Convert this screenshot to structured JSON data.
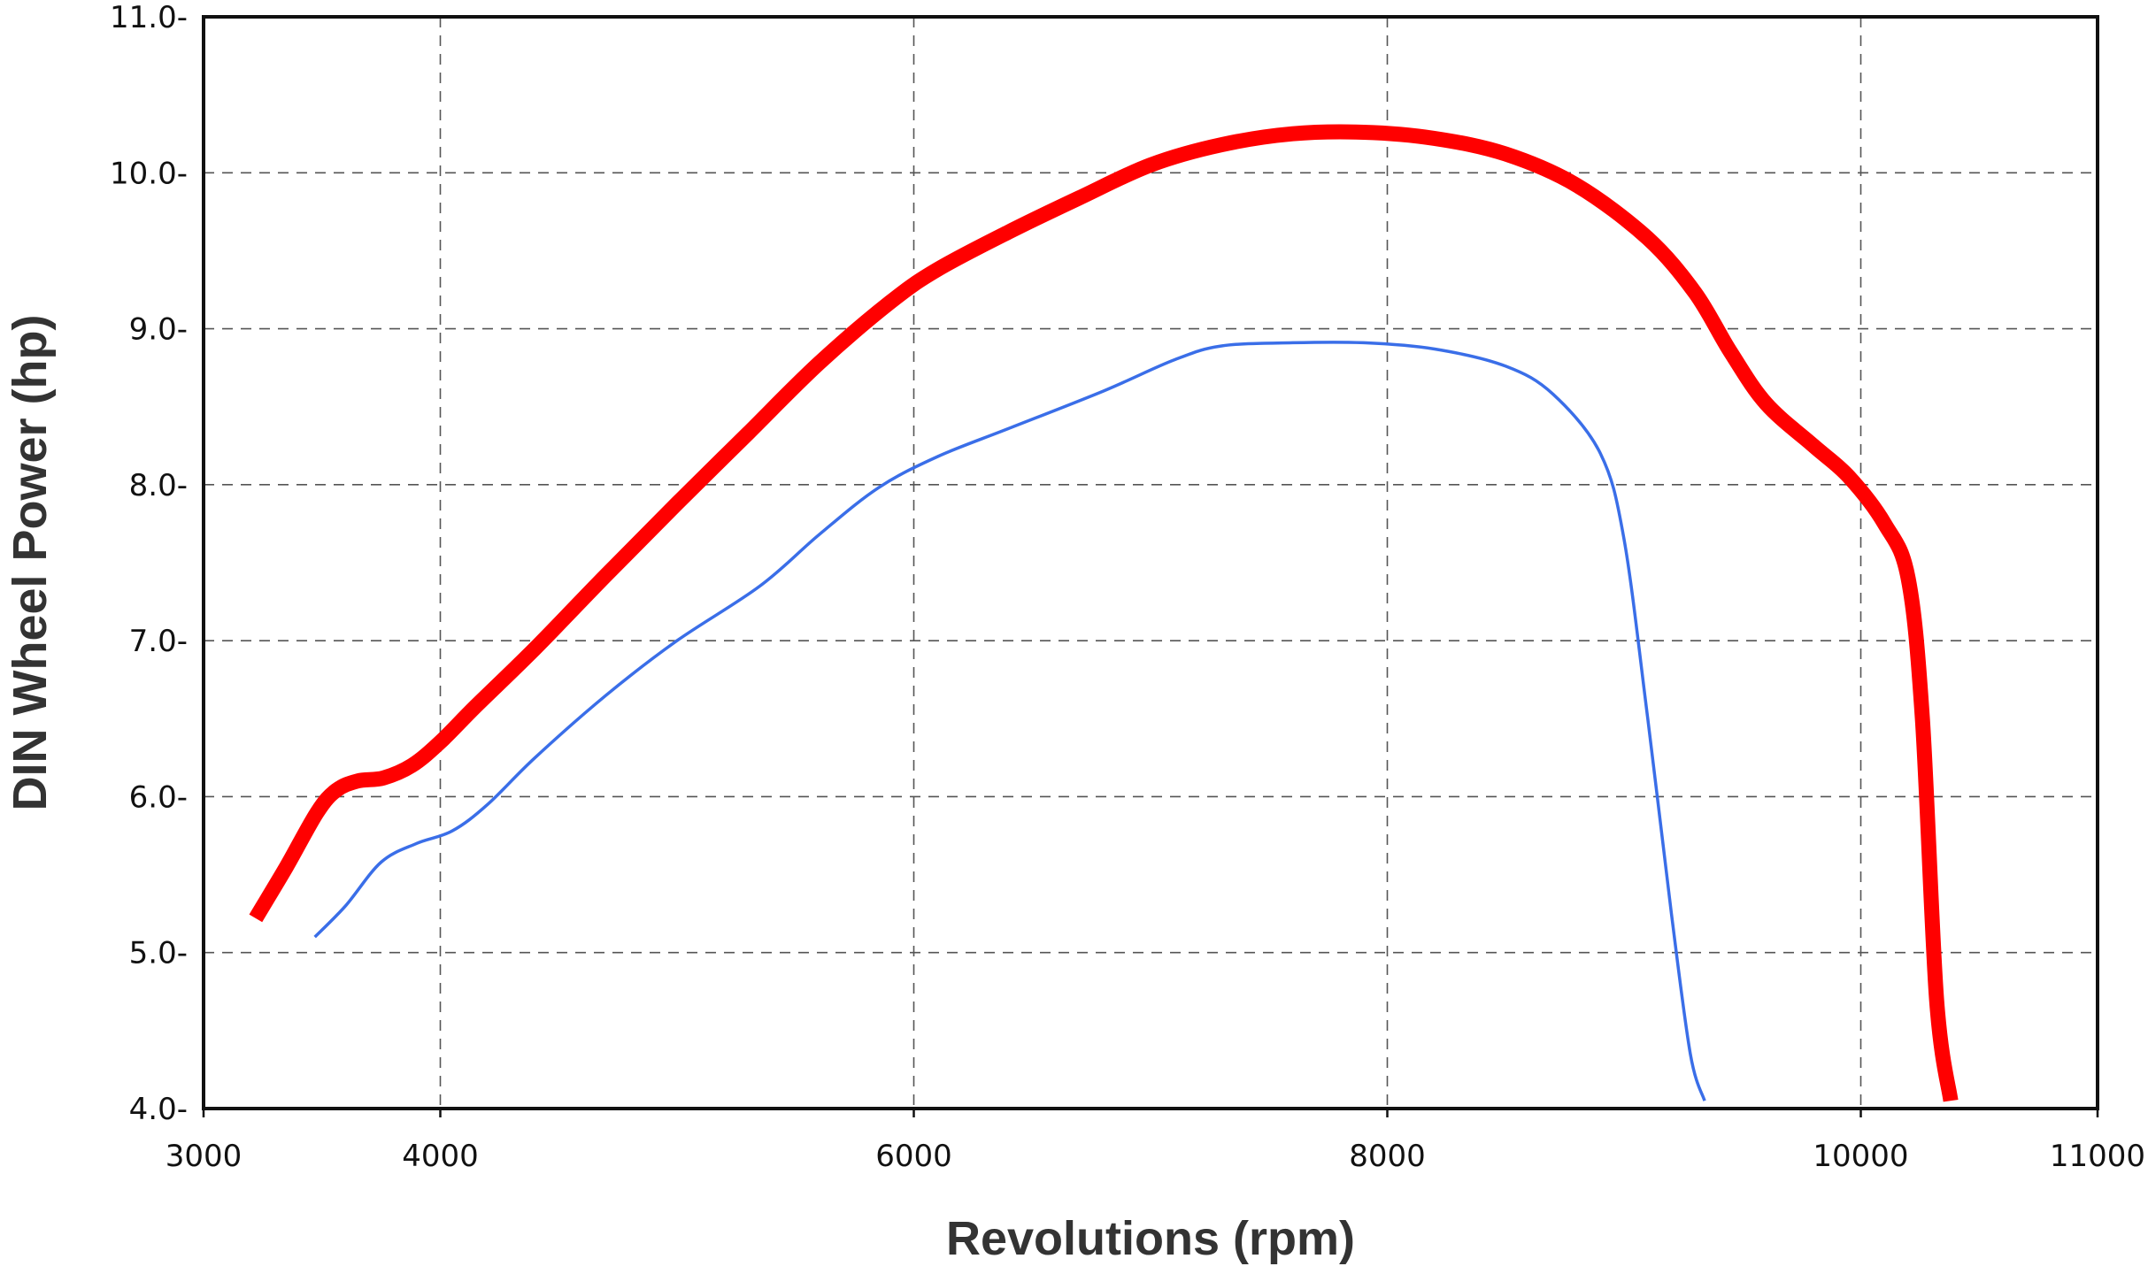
{
  "chart_data": {
    "type": "line",
    "title": "",
    "xlabel": "Revolutions (rpm)",
    "ylabel": "DIN Wheel Power (hp)",
    "xlim": [
      3000,
      11000
    ],
    "ylim": [
      4.0,
      11.0
    ],
    "x_ticks": [
      {
        "value": 3000,
        "label": "3000"
      },
      {
        "value": 4000,
        "label": "4000"
      },
      {
        "value": 6000,
        "label": "6000"
      },
      {
        "value": 8000,
        "label": "8000"
      },
      {
        "value": 10000,
        "label": "10000"
      },
      {
        "value": 11000,
        "label": "11000"
      }
    ],
    "y_ticks": [
      {
        "value": 4,
        "label": "4.0-"
      },
      {
        "value": 5,
        "label": "5.0-"
      },
      {
        "value": 6,
        "label": "6.0-"
      },
      {
        "value": 7,
        "label": "7.0-"
      },
      {
        "value": 8,
        "label": "8.0-"
      },
      {
        "value": 9,
        "label": "9.0-"
      },
      {
        "value": 10,
        "label": "10.0-"
      },
      {
        "value": 11,
        "label": "11.0-"
      }
    ],
    "grid": true,
    "series": [
      {
        "color": "#ff0000",
        "points": [
          [
            3220,
            5.22
          ],
          [
            3350,
            5.55
          ],
          [
            3480,
            5.9
          ],
          [
            3560,
            6.04
          ],
          [
            3650,
            6.1
          ],
          [
            3760,
            6.12
          ],
          [
            3880,
            6.2
          ],
          [
            4000,
            6.35
          ],
          [
            4150,
            6.58
          ],
          [
            4400,
            6.95
          ],
          [
            4700,
            7.42
          ],
          [
            5000,
            7.88
          ],
          [
            5300,
            8.33
          ],
          [
            5600,
            8.78
          ],
          [
            5900,
            9.17
          ],
          [
            6100,
            9.38
          ],
          [
            6400,
            9.62
          ],
          [
            6700,
            9.84
          ],
          [
            7000,
            10.05
          ],
          [
            7300,
            10.18
          ],
          [
            7600,
            10.25
          ],
          [
            7900,
            10.26
          ],
          [
            8200,
            10.22
          ],
          [
            8500,
            10.12
          ],
          [
            8800,
            9.92
          ],
          [
            9100,
            9.58
          ],
          [
            9300,
            9.23
          ],
          [
            9450,
            8.85
          ],
          [
            9600,
            8.52
          ],
          [
            9800,
            8.25
          ],
          [
            9950,
            8.05
          ],
          [
            10100,
            7.75
          ],
          [
            10200,
            7.4
          ],
          [
            10260,
            6.5
          ],
          [
            10320,
            4.7
          ],
          [
            10380,
            4.05
          ]
        ]
      },
      {
        "color": "#3a6ee8",
        "points": [
          [
            3470,
            5.1
          ],
          [
            3600,
            5.3
          ],
          [
            3750,
            5.58
          ],
          [
            3900,
            5.7
          ],
          [
            4050,
            5.78
          ],
          [
            4200,
            5.95
          ],
          [
            4400,
            6.25
          ],
          [
            4700,
            6.65
          ],
          [
            5000,
            7.0
          ],
          [
            5350,
            7.35
          ],
          [
            5600,
            7.68
          ],
          [
            5850,
            7.98
          ],
          [
            6100,
            8.18
          ],
          [
            6400,
            8.36
          ],
          [
            6800,
            8.6
          ],
          [
            7100,
            8.8
          ],
          [
            7300,
            8.89
          ],
          [
            7600,
            8.91
          ],
          [
            7900,
            8.91
          ],
          [
            8200,
            8.87
          ],
          [
            8500,
            8.76
          ],
          [
            8700,
            8.58
          ],
          [
            8900,
            8.2
          ],
          [
            9000,
            7.65
          ],
          [
            9100,
            6.5
          ],
          [
            9200,
            5.25
          ],
          [
            9280,
            4.35
          ],
          [
            9340,
            4.05
          ]
        ]
      }
    ]
  }
}
